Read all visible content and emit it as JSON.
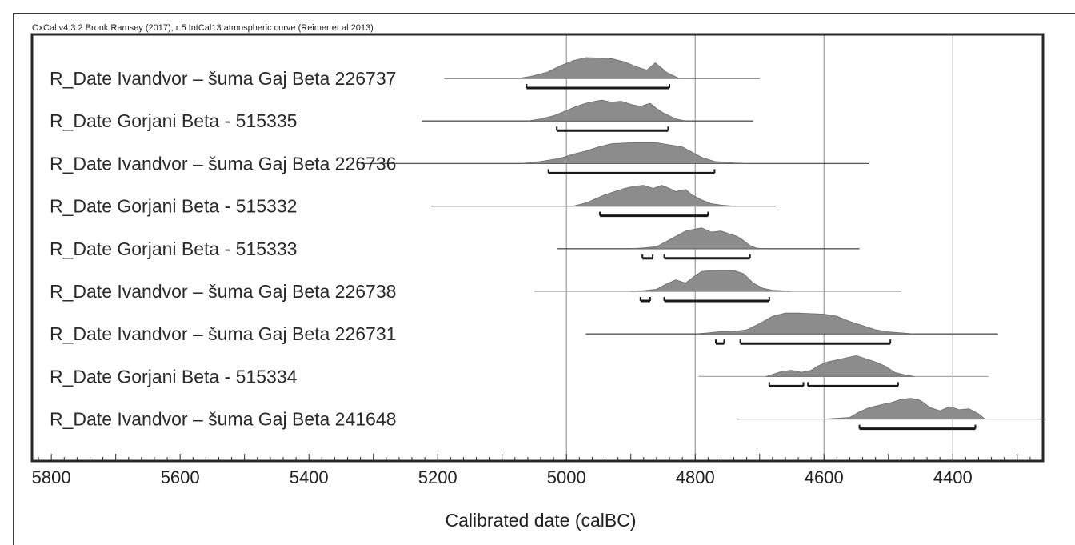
{
  "header": {
    "credit": "OxCal v4.3.2 Bronk Ramsey (2017); r:5 IntCal13 atmospheric curve (Reimer et al 2013)"
  },
  "chart_data": {
    "type": "area",
    "title": "",
    "xlabel": "Calibrated date (calBC)",
    "ylabel": "",
    "x_reversed": true,
    "xlim": [
      5830,
      4260
    ],
    "x_ticks": [
      5800,
      5600,
      5400,
      5200,
      5000,
      4800,
      4600,
      4400
    ],
    "grid_x": [
      5000,
      4800,
      4600,
      4400
    ],
    "colors": {
      "distribution": "#8c8c8c",
      "frame": "#2a2a2a",
      "grid": "#9a9a9a",
      "range": "#1a1a1a"
    },
    "series": [
      {
        "label": "R_Date Ivandvor – šuma Gaj Beta 226737",
        "extent": [
          5190,
          4700
        ],
        "extent_color": "#555555",
        "density": [
          [
            5075,
            0
          ],
          [
            5055,
            0.1
          ],
          [
            5030,
            0.3
          ],
          [
            5010,
            0.6
          ],
          [
            4990,
            0.85
          ],
          [
            4970,
            1
          ],
          [
            4950,
            0.98
          ],
          [
            4930,
            0.95
          ],
          [
            4910,
            0.8
          ],
          [
            4890,
            0.55
          ],
          [
            4875,
            0.4
          ],
          [
            4862,
            0.75
          ],
          [
            4852,
            0.5
          ],
          [
            4845,
            0.3
          ],
          [
            4835,
            0.15
          ],
          [
            4825,
            0
          ]
        ],
        "ranges_95": [
          [
            5062,
            4840
          ]
        ]
      },
      {
        "label": "R_Date Gorjani Beta - 515335",
        "extent": [
          5225,
          4710
        ],
        "extent_color": "#555555",
        "density": [
          [
            5060,
            0
          ],
          [
            5040,
            0.1
          ],
          [
            5020,
            0.25
          ],
          [
            5000,
            0.5
          ],
          [
            4985,
            0.7
          ],
          [
            4970,
            0.85
          ],
          [
            4955,
            0.95
          ],
          [
            4945,
            1
          ],
          [
            4930,
            0.9
          ],
          [
            4915,
            0.95
          ],
          [
            4900,
            0.8
          ],
          [
            4885,
            0.7
          ],
          [
            4870,
            0.85
          ],
          [
            4860,
            0.6
          ],
          [
            4850,
            0.4
          ],
          [
            4840,
            0.25
          ],
          [
            4830,
            0.1
          ],
          [
            4815,
            0
          ]
        ],
        "ranges_95": [
          [
            5015,
            4842
          ]
        ]
      },
      {
        "label": "R_Date Ivandvor – šuma Gaj Beta 226736",
        "extent": [
          5320,
          4530
        ],
        "extent_color": "#555555",
        "density": [
          [
            5070,
            0
          ],
          [
            5040,
            0.1
          ],
          [
            5010,
            0.25
          ],
          [
            4990,
            0.45
          ],
          [
            4970,
            0.6
          ],
          [
            4950,
            0.8
          ],
          [
            4930,
            0.95
          ],
          [
            4900,
            1
          ],
          [
            4860,
            1
          ],
          [
            4840,
            0.9
          ],
          [
            4820,
            0.8
          ],
          [
            4805,
            0.55
          ],
          [
            4790,
            0.3
          ],
          [
            4770,
            0.1
          ],
          [
            4740,
            0.03
          ],
          [
            4720,
            0
          ]
        ],
        "ranges_95": [
          [
            5028,
            4770
          ]
        ]
      },
      {
        "label": "R_Date Gorjani Beta - 515332",
        "extent": [
          5210,
          4675
        ],
        "extent_color": "#555555",
        "density": [
          [
            4990,
            0
          ],
          [
            4970,
            0.15
          ],
          [
            4955,
            0.35
          ],
          [
            4940,
            0.55
          ],
          [
            4925,
            0.7
          ],
          [
            4910,
            0.85
          ],
          [
            4895,
            0.95
          ],
          [
            4880,
            1
          ],
          [
            4865,
            0.85
          ],
          [
            4852,
            1
          ],
          [
            4840,
            0.85
          ],
          [
            4830,
            0.7
          ],
          [
            4815,
            0.8
          ],
          [
            4805,
            0.55
          ],
          [
            4790,
            0.3
          ],
          [
            4775,
            0.12
          ],
          [
            4760,
            0.05
          ],
          [
            4740,
            0
          ]
        ],
        "ranges_95": [
          [
            4948,
            4780
          ]
        ]
      },
      {
        "label": "R_Date Gorjani Beta - 515333",
        "extent": [
          5015,
          4545
        ],
        "extent_color": "#555555",
        "density": [
          [
            4900,
            0
          ],
          [
            4880,
            0.04
          ],
          [
            4860,
            0.1
          ],
          [
            4845,
            0.35
          ],
          [
            4830,
            0.6
          ],
          [
            4815,
            0.85
          ],
          [
            4800,
            0.95
          ],
          [
            4790,
            1
          ],
          [
            4775,
            0.8
          ],
          [
            4760,
            0.85
          ],
          [
            4745,
            0.7
          ],
          [
            4735,
            0.6
          ],
          [
            4725,
            0.4
          ],
          [
            4715,
            0.15
          ],
          [
            4705,
            0.03
          ],
          [
            4690,
            0
          ]
        ],
        "ranges_95": [
          [
            4882,
            4866
          ],
          [
            4848,
            4715
          ]
        ]
      },
      {
        "label": "R_Date Ivandvor – šuma Gaj Beta 226738",
        "extent": [
          5050,
          4480
        ],
        "extent_color": "#999999",
        "density": [
          [
            4900,
            0
          ],
          [
            4880,
            0.03
          ],
          [
            4860,
            0.1
          ],
          [
            4845,
            0.35
          ],
          [
            4830,
            0.55
          ],
          [
            4815,
            0.4
          ],
          [
            4800,
            0.75
          ],
          [
            4790,
            0.95
          ],
          [
            4775,
            1
          ],
          [
            4740,
            1
          ],
          [
            4725,
            0.85
          ],
          [
            4710,
            0.4
          ],
          [
            4695,
            0.15
          ],
          [
            4680,
            0.05
          ],
          [
            4650,
            0
          ]
        ],
        "ranges_95": [
          [
            4885,
            4870
          ],
          [
            4848,
            4685
          ]
        ]
      },
      {
        "label": "R_Date Ivandvor – šuma Gaj Beta 226731",
        "extent": [
          4970,
          4330
        ],
        "extent_color": "#555555",
        "density": [
          [
            4800,
            0
          ],
          [
            4780,
            0.05
          ],
          [
            4760,
            0.12
          ],
          [
            4740,
            0.12
          ],
          [
            4720,
            0.2
          ],
          [
            4700,
            0.5
          ],
          [
            4680,
            0.85
          ],
          [
            4660,
            1
          ],
          [
            4640,
            1
          ],
          [
            4600,
            0.95
          ],
          [
            4580,
            0.85
          ],
          [
            4560,
            0.6
          ],
          [
            4540,
            0.4
          ],
          [
            4520,
            0.2
          ],
          [
            4500,
            0.1
          ],
          [
            4480,
            0.05
          ],
          [
            4460,
            0
          ]
        ],
        "ranges_95": [
          [
            4768,
            4755
          ],
          [
            4730,
            4497
          ]
        ]
      },
      {
        "label": "R_Date Gorjani Beta - 515334",
        "extent": [
          4795,
          4345
        ],
        "extent_color": "#aaaaaa",
        "density": [
          [
            4690,
            0
          ],
          [
            4680,
            0.1
          ],
          [
            4665,
            0.25
          ],
          [
            4650,
            0.3
          ],
          [
            4635,
            0.2
          ],
          [
            4620,
            0.3
          ],
          [
            4610,
            0.5
          ],
          [
            4595,
            0.7
          ],
          [
            4580,
            0.8
          ],
          [
            4565,
            0.9
          ],
          [
            4550,
            1
          ],
          [
            4535,
            0.85
          ],
          [
            4520,
            0.7
          ],
          [
            4505,
            0.5
          ],
          [
            4490,
            0.2
          ],
          [
            4475,
            0.08
          ],
          [
            4460,
            0
          ]
        ],
        "ranges_95": [
          [
            4685,
            4632
          ],
          [
            4625,
            4485
          ]
        ]
      },
      {
        "label": "R_Date Ivandvor – šuma Gaj Beta 241648",
        "extent": [
          4735,
          4255
        ],
        "extent_color": "#aaaaaa",
        "density": [
          [
            4600,
            0
          ],
          [
            4560,
            0.08
          ],
          [
            4545,
            0.35
          ],
          [
            4530,
            0.55
          ],
          [
            4510,
            0.7
          ],
          [
            4495,
            0.8
          ],
          [
            4480,
            0.95
          ],
          [
            4465,
            1
          ],
          [
            4450,
            0.9
          ],
          [
            4435,
            0.55
          ],
          [
            4420,
            0.4
          ],
          [
            4405,
            0.6
          ],
          [
            4390,
            0.45
          ],
          [
            4375,
            0.5
          ],
          [
            4360,
            0.25
          ],
          [
            4350,
            0
          ]
        ],
        "ranges_95": [
          [
            4545,
            4365
          ]
        ]
      }
    ]
  }
}
